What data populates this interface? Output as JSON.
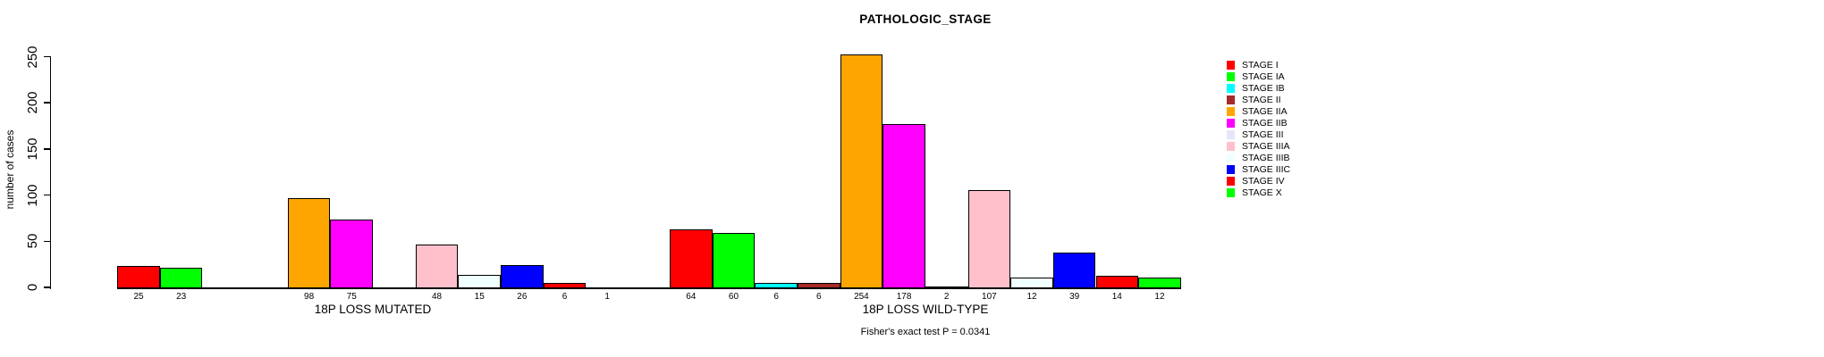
{
  "chart_data": {
    "type": "bar",
    "title": "PATHOLOGIC_STAGE",
    "annotation": "Fisher's exact test P = 0.0341",
    "ylabel": "number of cases",
    "ylim": [
      0,
      250
    ],
    "yticks": [
      0,
      50,
      100,
      150,
      200,
      250
    ],
    "grid": false,
    "legend_position": "right",
    "categories": [
      "STAGE I",
      "STAGE IA",
      "STAGE IB",
      "STAGE II",
      "STAGE IIA",
      "STAGE IIB",
      "STAGE III",
      "STAGE IIIA",
      "STAGE IIIB",
      "STAGE IIIC",
      "STAGE IV",
      "STAGE X"
    ],
    "colors": [
      "#FF0000",
      "#00FF00",
      "#00FFFF",
      "#A52A2A",
      "#FFA500",
      "#FF00FF",
      "#E6E6FA",
      "#FFC0CB",
      "#F0FFFF",
      "#0000FF",
      "#FF0000",
      "#00FF00"
    ],
    "groups": [
      {
        "label": "18P LOSS MUTATED",
        "values": [
          25,
          23,
          0,
          0,
          98,
          75,
          0,
          48,
          15,
          26,
          6,
          1
        ]
      },
      {
        "label": "18P LOSS WILD-TYPE",
        "values": [
          64,
          60,
          6,
          6,
          254,
          178,
          2,
          107,
          12,
          39,
          14,
          12
        ]
      }
    ]
  }
}
